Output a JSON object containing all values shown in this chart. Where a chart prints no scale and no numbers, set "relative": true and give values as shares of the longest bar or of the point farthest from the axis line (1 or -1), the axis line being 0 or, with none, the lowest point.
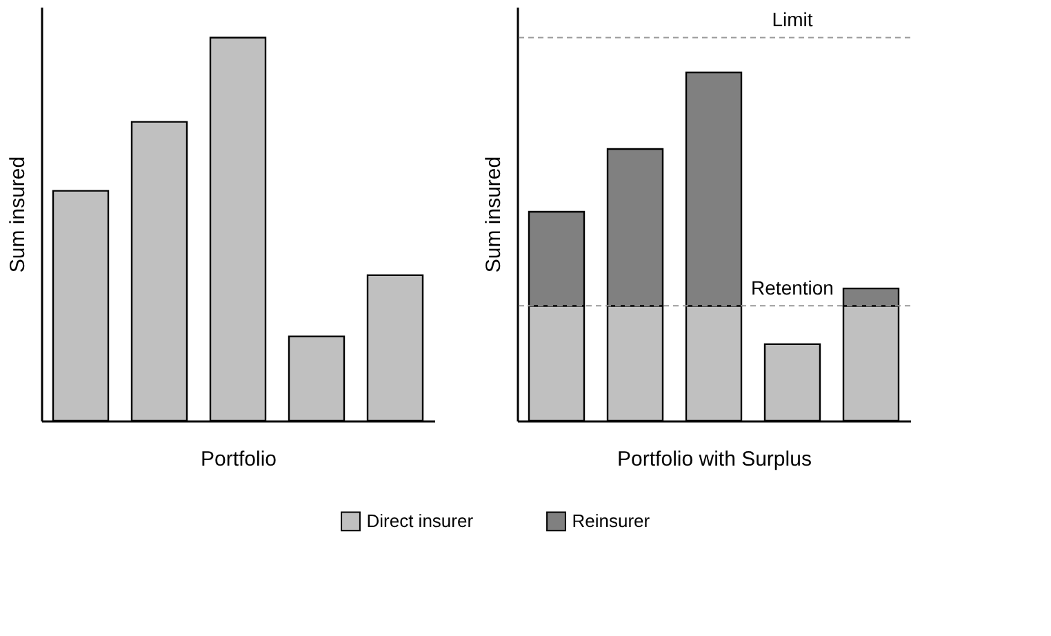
{
  "chart_data": [
    {
      "type": "bar",
      "relative": true,
      "xlabel": "Portfolio",
      "ylabel": "Sum insured",
      "categories": [
        null,
        null,
        null,
        null,
        null
      ],
      "series": [
        {
          "color": "#c0c0c0",
          "values": [
            0.6,
            0.78,
            1.0,
            0.22,
            0.38
          ]
        }
      ]
    },
    {
      "type": "bar",
      "relative": true,
      "stacked": true,
      "xlabel": "Portfolio with Surplus",
      "ylabel": "Sum insured",
      "categories": [
        null,
        null,
        null,
        null,
        null
      ],
      "series": [
        {
          "name": "Direct insurer",
          "color": "#c0c0c0",
          "values": [
            0.33,
            0.33,
            0.33,
            0.22,
            0.33
          ]
        },
        {
          "name": "Reinsurer",
          "color": "#808080",
          "values": [
            0.27,
            0.45,
            0.67,
            null,
            0.05
          ]
        }
      ],
      "ref_lines": [
        {
          "axis": "y",
          "value": 1.1,
          "label": "Limit",
          "color": "#999999",
          "line_style": "dashed"
        },
        {
          "axis": "y",
          "value": 0.33,
          "label": "Retention",
          "color": "#999999",
          "line_style": "dashed"
        }
      ],
      "legend": "bottom"
    }
  ]
}
